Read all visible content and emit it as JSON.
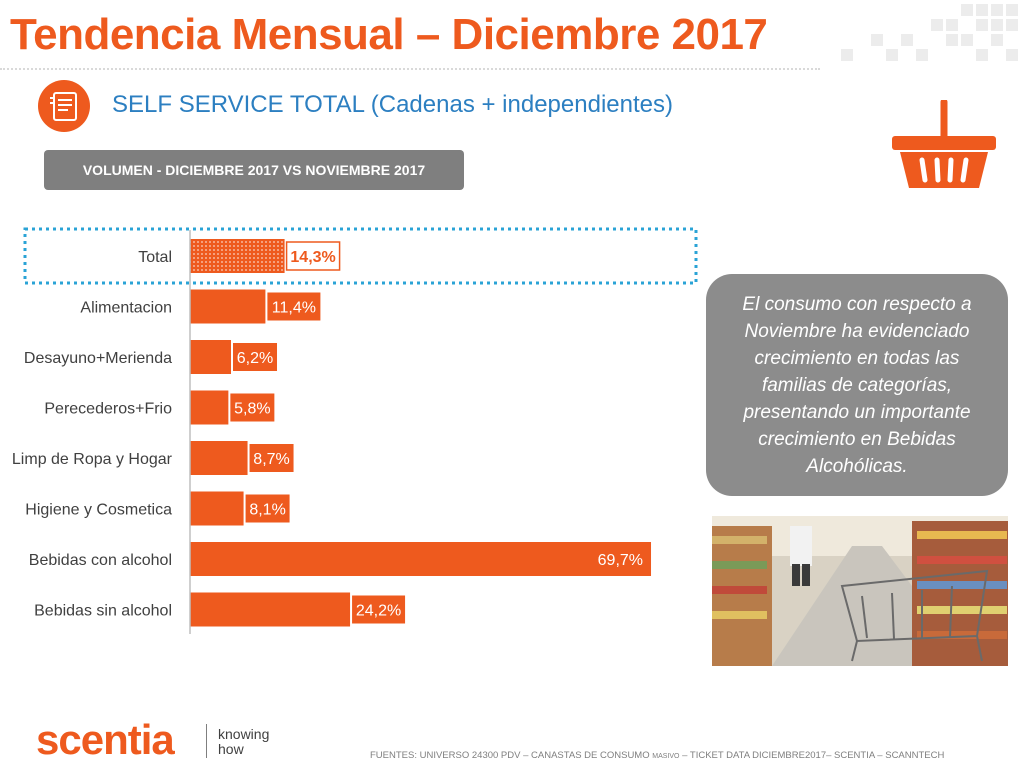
{
  "page": {
    "title": "Tendencia Mensual – Diciembre 2017",
    "segment_title": "SELF SERVICE TOTAL (Cadenas + independientes)",
    "volume_label": "VOLUMEN -  DICIEMBRE 2017 VS NOVIEMBRE 2017",
    "callout": "El consumo con respecto a Noviembre ha evidenciado crecimiento en todas las familias de categorías, presentando un importante crecimiento en Bebidas Alcohólicas.",
    "logo": {
      "name": "scentia",
      "tagline_1": "knowing",
      "tagline_2": "how"
    },
    "footer": {
      "part1": "FUENTES: UNIVERSO 24300 PDV – CANASTAS DE CONSUMO ",
      "small": "MASIVO",
      "part2": " – TICKET DATA DICIEMBRE2017– SCENTIA – SCANNTECH"
    },
    "icons": {
      "segment": "receipt-icon",
      "basket": "shopping-basket-icon",
      "photo": "supermarket-photo"
    },
    "colors": {
      "accent": "#ee5a1e",
      "blue": "#2c7fc1",
      "gray": "#7f7f7f",
      "highlight_border": "#2aa3d6"
    }
  },
  "chart_data": {
    "type": "bar",
    "orientation": "horizontal",
    "categories": [
      "Total",
      "Alimentacion",
      "Desayuno+Merienda",
      "Perecederos+Frio",
      "Limp de Ropa y Hogar",
      "Higiene y Cosmetica",
      "Bebidas con alcohol",
      "Bebidas sin alcohol"
    ],
    "values": [
      14.3,
      11.4,
      6.2,
      5.8,
      8.7,
      8.1,
      69.7,
      24.2
    ],
    "labels": [
      "14,3%",
      "11,4%",
      "6,2%",
      "5,8%",
      "8,7%",
      "8,1%",
      "69,7%",
      "24,2%"
    ],
    "highlighted": "Total",
    "unit": "%",
    "xlim": [
      0,
      70
    ],
    "grid": false,
    "legend": "none",
    "title": "",
    "xlabel": "",
    "ylabel": ""
  }
}
